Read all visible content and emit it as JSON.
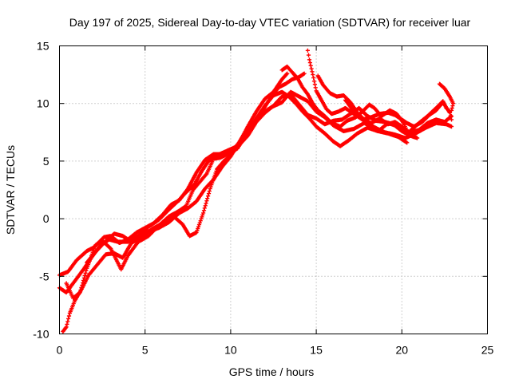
{
  "chart_data": {
    "type": "scatter",
    "title": "Day 197 of 2025, Sidereal Day-to-day VTEC variation (SDTVAR) for receiver luar",
    "xlabel": "GPS time / hours",
    "ylabel": "SDTVAR / TECUs",
    "xlim": [
      0,
      25
    ],
    "ylim": [
      -10,
      15
    ],
    "xticks": [
      0,
      5,
      10,
      15,
      20,
      25
    ],
    "yticks": [
      -10,
      -5,
      0,
      5,
      10,
      15
    ],
    "xtick_labels": [
      "0",
      "5",
      "10",
      "15",
      "20",
      "25"
    ],
    "ytick_labels": [
      "-10",
      "-5",
      "0",
      "5",
      "10",
      "15"
    ],
    "grid": true,
    "marker": "+",
    "color": "#ff0000",
    "series": [
      {
        "points": [
          [
            0.0,
            -4.9
          ],
          [
            0.5,
            -4.6
          ],
          [
            1.0,
            -3.6
          ],
          [
            1.6,
            -2.8
          ],
          [
            2.0,
            -2.5
          ],
          [
            2.6,
            -1.6
          ],
          [
            3.0,
            -1.5
          ],
          [
            3.5,
            -2.1
          ],
          [
            4.0,
            -1.8
          ],
          [
            4.5,
            -1.2
          ],
          [
            5.0,
            -0.8
          ],
          [
            5.5,
            -0.4
          ],
          [
            6.0,
            0.3
          ],
          [
            6.5,
            1.2
          ],
          [
            7.0,
            1.6
          ],
          [
            7.5,
            2.6
          ],
          [
            8.0,
            4.0
          ],
          [
            8.5,
            5.1
          ],
          [
            9.0,
            5.6
          ],
          [
            9.5,
            5.6
          ],
          [
            10.0,
            5.8
          ],
          [
            10.5,
            6.6
          ],
          [
            11.0,
            8.0
          ],
          [
            11.5,
            9.3
          ],
          [
            12.0,
            10.4
          ],
          [
            12.5,
            11.0
          ],
          [
            13.0,
            12.1
          ],
          [
            13.3,
            12.6
          ]
        ]
      },
      {
        "points": [
          [
            0.0,
            -6.0
          ],
          [
            0.4,
            -6.4
          ],
          [
            0.9,
            -5.4
          ],
          [
            1.4,
            -4.4
          ],
          [
            2.0,
            -3.1
          ],
          [
            2.4,
            -2.3
          ],
          [
            2.9,
            -1.8
          ],
          [
            3.4,
            -2.0
          ],
          [
            4.0,
            -2.0
          ],
          [
            4.6,
            -1.5
          ],
          [
            5.2,
            -1.1
          ],
          [
            5.8,
            -0.8
          ],
          [
            6.4,
            -0.3
          ],
          [
            7.0,
            0.5
          ],
          [
            7.5,
            0.9
          ],
          [
            8.0,
            1.5
          ],
          [
            8.5,
            2.6
          ],
          [
            9.0,
            3.4
          ],
          [
            9.5,
            4.5
          ],
          [
            10.0,
            5.4
          ],
          [
            10.6,
            6.9
          ],
          [
            11.2,
            8.1
          ],
          [
            11.8,
            9.1
          ],
          [
            12.4,
            9.7
          ],
          [
            13.0,
            10.1
          ],
          [
            13.5,
            11.0
          ],
          [
            14.0,
            10.6
          ],
          [
            14.5,
            10.2
          ],
          [
            15.0,
            9.3
          ],
          [
            15.5,
            8.8
          ],
          [
            16.0,
            8.1
          ],
          [
            16.6,
            7.6
          ],
          [
            17.2,
            7.8
          ],
          [
            17.8,
            8.3
          ],
          [
            18.4,
            7.9
          ],
          [
            19.0,
            7.5
          ],
          [
            19.6,
            7.3
          ],
          [
            20.2,
            7.0
          ],
          [
            20.8,
            7.4
          ],
          [
            21.4,
            7.9
          ],
          [
            22.0,
            8.3
          ],
          [
            22.6,
            8.2
          ],
          [
            22.9,
            8.0
          ]
        ]
      },
      {
        "points": [
          [
            0.2,
            -9.8
          ],
          [
            0.4,
            -9.4
          ],
          [
            0.6,
            -8.2
          ],
          [
            0.9,
            -7.1
          ],
          [
            1.3,
            -6.1
          ],
          [
            1.7,
            -4.9
          ],
          [
            2.2,
            -4.0
          ],
          [
            2.7,
            -3.1
          ],
          [
            3.2,
            -3.0
          ],
          [
            3.7,
            -3.4
          ],
          [
            4.2,
            -2.1
          ],
          [
            4.8,
            -1.6
          ],
          [
            5.4,
            -0.9
          ],
          [
            6.0,
            -0.4
          ],
          [
            6.6,
            0.3
          ],
          [
            7.2,
            -0.5
          ],
          [
            7.6,
            -1.5
          ],
          [
            8.0,
            -1.2
          ],
          [
            8.4,
            0.5
          ],
          [
            8.8,
            2.6
          ],
          [
            9.2,
            4.3
          ],
          [
            9.6,
            5.0
          ],
          [
            10.0,
            5.5
          ],
          [
            10.5,
            6.4
          ],
          [
            11.0,
            7.2
          ],
          [
            11.5,
            8.4
          ],
          [
            12.0,
            9.2
          ],
          [
            12.5,
            9.8
          ],
          [
            13.0,
            10.6
          ],
          [
            13.5,
            10.8
          ],
          [
            14.0,
            9.9
          ],
          [
            14.5,
            9.0
          ],
          [
            15.0,
            8.7
          ],
          [
            15.5,
            8.2
          ],
          [
            16.0,
            8.5
          ],
          [
            16.5,
            8.6
          ],
          [
            17.0,
            9.1
          ],
          [
            17.5,
            9.6
          ],
          [
            18.0,
            8.9
          ],
          [
            18.5,
            8.5
          ],
          [
            19.0,
            8.4
          ],
          [
            19.5,
            8.2
          ],
          [
            20.0,
            7.6
          ],
          [
            20.5,
            7.2
          ],
          [
            20.9,
            7.0
          ]
        ]
      },
      {
        "points": [
          [
            0.4,
            -5.6
          ],
          [
            0.8,
            -6.9
          ],
          [
            1.2,
            -6.4
          ],
          [
            1.6,
            -4.3
          ],
          [
            2.1,
            -2.3
          ],
          [
            2.5,
            -1.9
          ],
          [
            3.0,
            -2.6
          ],
          [
            3.6,
            -4.4
          ],
          [
            4.0,
            -3.2
          ],
          [
            4.6,
            -2.0
          ],
          [
            5.2,
            -1.5
          ],
          [
            5.8,
            -0.6
          ],
          [
            6.4,
            0.2
          ],
          [
            6.9,
            0.6
          ],
          [
            7.4,
            1.1
          ],
          [
            7.8,
            2.5
          ],
          [
            8.2,
            3.2
          ],
          [
            8.6,
            3.9
          ],
          [
            9.0,
            5.2
          ],
          [
            9.4,
            5.3
          ],
          [
            9.8,
            5.6
          ],
          [
            10.4,
            6.1
          ],
          [
            11.0,
            7.5
          ],
          [
            11.6,
            8.7
          ],
          [
            12.2,
            10.2
          ],
          [
            12.8,
            11.4
          ],
          [
            13.2,
            11.7
          ],
          [
            13.6,
            12.1
          ],
          [
            14.0,
            12.3
          ],
          [
            14.3,
            12.6
          ]
        ]
      },
      {
        "points": [
          [
            1.6,
            -3.8
          ],
          [
            2.1,
            -2.9
          ],
          [
            2.6,
            -2.1
          ],
          [
            3.2,
            -1.3
          ],
          [
            3.7,
            -1.5
          ],
          [
            4.1,
            -1.9
          ],
          [
            4.6,
            -1.5
          ],
          [
            5.2,
            -0.7
          ],
          [
            5.8,
            -0.1
          ],
          [
            6.4,
            0.8
          ],
          [
            6.9,
            1.5
          ],
          [
            7.4,
            2.3
          ],
          [
            7.9,
            3.0
          ],
          [
            8.3,
            4.1
          ],
          [
            8.7,
            5.0
          ],
          [
            9.2,
            5.5
          ],
          [
            9.8,
            5.9
          ],
          [
            10.4,
            6.3
          ],
          [
            10.9,
            7.4
          ],
          [
            11.4,
            8.5
          ],
          [
            12.0,
            9.8
          ],
          [
            12.5,
            10.7
          ],
          [
            13.0,
            11.0
          ],
          [
            13.4,
            10.6
          ],
          [
            13.8,
            10.0
          ],
          [
            14.2,
            9.3
          ],
          [
            14.6,
            8.7
          ],
          [
            15.0,
            8.0
          ],
          [
            15.5,
            7.4
          ],
          [
            16.0,
            6.7
          ],
          [
            16.4,
            6.3
          ],
          [
            16.9,
            6.8
          ],
          [
            17.4,
            7.4
          ],
          [
            18.0,
            7.9
          ],
          [
            18.6,
            7.6
          ],
          [
            19.2,
            7.4
          ],
          [
            19.8,
            7.1
          ],
          [
            20.3,
            6.6
          ]
        ]
      },
      {
        "points": [
          [
            14.5,
            14.6
          ],
          [
            14.6,
            13.8
          ],
          [
            14.8,
            12.5
          ],
          [
            15.0,
            11.1
          ],
          [
            15.3,
            10.3
          ],
          [
            15.6,
            9.5
          ],
          [
            15.9,
            9.1
          ],
          [
            16.3,
            9.3
          ],
          [
            16.7,
            9.6
          ],
          [
            17.2,
            9.1
          ],
          [
            17.7,
            8.6
          ],
          [
            18.2,
            8.3
          ],
          [
            18.7,
            8.7
          ],
          [
            19.2,
            8.2
          ],
          [
            19.6,
            8.4
          ],
          [
            20.0,
            8.0
          ],
          [
            20.4,
            7.5
          ],
          [
            20.7,
            7.9
          ],
          [
            21.0,
            8.3
          ],
          [
            21.5,
            8.9
          ],
          [
            22.0,
            9.6
          ],
          [
            22.4,
            10.2
          ],
          [
            22.6,
            9.6
          ],
          [
            22.8,
            9.3
          ],
          [
            22.9,
            8.6
          ]
        ]
      },
      {
        "points": [
          [
            15.1,
            12.4
          ],
          [
            15.4,
            11.6
          ],
          [
            15.8,
            10.9
          ],
          [
            16.2,
            10.6
          ],
          [
            16.6,
            10.7
          ],
          [
            17.0,
            10.1
          ],
          [
            17.4,
            9.2
          ],
          [
            17.8,
            8.6
          ],
          [
            18.2,
            8.1
          ],
          [
            18.7,
            7.7
          ],
          [
            19.2,
            8.3
          ],
          [
            19.6,
            8.1
          ],
          [
            20.0,
            7.7
          ],
          [
            20.5,
            7.5
          ],
          [
            21.0,
            7.7
          ],
          [
            21.5,
            8.3
          ],
          [
            22.0,
            8.6
          ],
          [
            22.5,
            8.4
          ],
          [
            22.9,
            8.9
          ]
        ]
      },
      {
        "points": [
          [
            16.7,
            10.3
          ],
          [
            17.0,
            9.7
          ],
          [
            17.3,
            9.1
          ],
          [
            17.7,
            8.6
          ],
          [
            18.2,
            8.8
          ],
          [
            18.7,
            9.1
          ],
          [
            19.2,
            9.2
          ],
          [
            19.6,
            9.0
          ],
          [
            20.0,
            8.6
          ],
          [
            20.3,
            8.3
          ],
          [
            20.7,
            8.0
          ],
          [
            21.2,
            8.4
          ],
          [
            21.6,
            9.0
          ],
          [
            22.0,
            9.4
          ],
          [
            22.4,
            10.1
          ],
          [
            22.8,
            9.2
          ]
        ]
      },
      {
        "points": [
          [
            22.2,
            11.7
          ],
          [
            22.5,
            11.3
          ],
          [
            22.8,
            10.6
          ],
          [
            23.0,
            10.0
          ],
          [
            22.9,
            9.4
          ]
        ]
      },
      {
        "points": [
          [
            13.0,
            12.9
          ],
          [
            13.3,
            13.2
          ],
          [
            13.6,
            12.7
          ],
          [
            13.9,
            12.2
          ],
          [
            14.2,
            11.4
          ],
          [
            14.5,
            10.8
          ],
          [
            14.8,
            10.0
          ],
          [
            15.1,
            9.4
          ],
          [
            15.5,
            8.9
          ],
          [
            15.9,
            8.3
          ],
          [
            16.4,
            8.0
          ],
          [
            16.8,
            8.5
          ],
          [
            17.3,
            8.8
          ],
          [
            17.7,
            9.3
          ],
          [
            18.1,
            9.9
          ],
          [
            18.4,
            9.6
          ],
          [
            18.8,
            8.9
          ],
          [
            19.3,
            9.4
          ],
          [
            19.7,
            9.1
          ],
          [
            20.1,
            8.3
          ],
          [
            20.4,
            7.3
          ]
        ]
      }
    ]
  }
}
